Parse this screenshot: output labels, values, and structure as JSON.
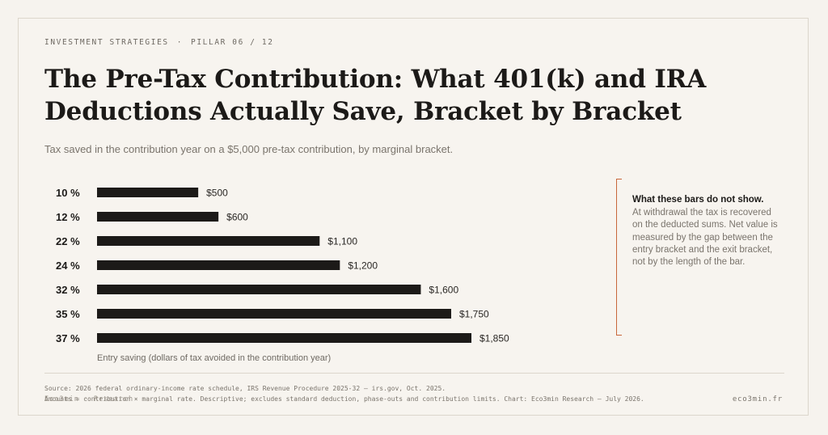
{
  "header": {
    "kicker_section": "INVESTMENT STRATEGIES",
    "kicker_sep": "·",
    "kicker_pillar": "PILLAR 06 / 12",
    "title": "The Pre-Tax Contribution: What 401(k) and IRA Deductions Actually Save, Bracket by Bracket",
    "subtitle": "Tax saved in the contribution year on a $5,000 pre-tax contribution, by marginal bracket."
  },
  "chart_data": {
    "type": "bar",
    "orientation": "horizontal",
    "categories": [
      "10 %",
      "12 %",
      "22 %",
      "24 %",
      "32 %",
      "35 %",
      "37 %"
    ],
    "values": [
      500,
      600,
      1100,
      1200,
      1600,
      1750,
      1850
    ],
    "value_labels": [
      "$500",
      "$600",
      "$1,100",
      "$1,200",
      "$1,600",
      "$1,750",
      "$1,850"
    ],
    "xlabel": "Entry saving (dollars of tax avoided in the contribution year)",
    "xlim": [
      0,
      1850
    ],
    "grid": false,
    "bar_color": "#1c1a18"
  },
  "note": {
    "heading": "What these bars do not show.",
    "body": "At withdrawal the tax is recovered on the deducted sums. Net value is measured by the gap between the entry bracket and the exit bracket, not by the length of the bar.",
    "accent_color": "#c8673b"
  },
  "footer": {
    "source_line1": "Source: 2026 federal ordinary-income rate schedule, IRS Revenue Procedure 2025-32 — irs.gov, Oct. 2025.",
    "source_line2": "Amounts = contribution × marginal rate. Descriptive; excludes standard deduction, phase-outs and contribution limits. Chart: Eco3min Research — July 2026.",
    "brand": "Eco3min · Research",
    "site": "eco3min.fr"
  }
}
